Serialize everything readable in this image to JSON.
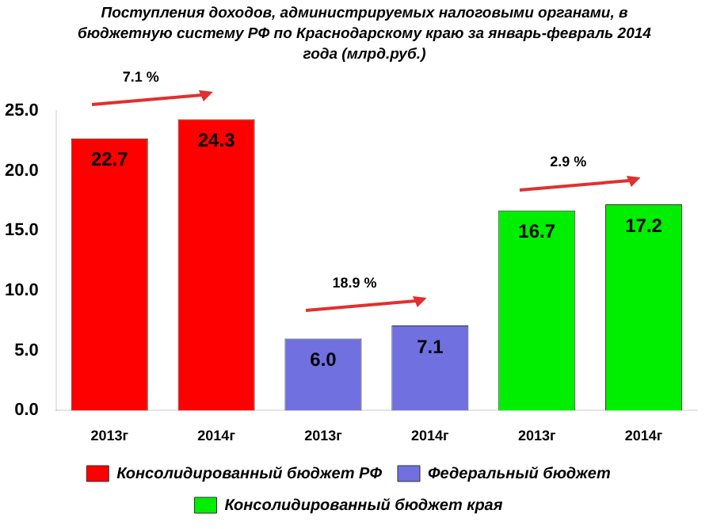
{
  "chart_data": {
    "type": "bar",
    "title": "Поступления доходов, администрируемых налоговыми органами, в бюджетную систему РФ по Краснодарскому краю за январь-февраль 2014 года  (млрд.руб.)",
    "categories": [
      "2013г",
      "2014г",
      "2013г",
      "2014г",
      "2013г",
      "2014г"
    ],
    "series": [
      {
        "name": "Консолидированный бюджет РФ",
        "color": "#ff0000",
        "values": [
          22.7,
          24.3,
          null,
          null,
          null,
          null
        ],
        "value_labels": [
          "22.7",
          "24.3",
          null,
          null,
          null,
          null
        ]
      },
      {
        "name": "Федеральный бюджет",
        "color": "#7070e0",
        "values": [
          null,
          null,
          6.0,
          7.1,
          null,
          null
        ],
        "value_labels": [
          null,
          null,
          "6.0",
          "7.1",
          null,
          null
        ]
      },
      {
        "name": "Консолидированный бюджет края",
        "color": "#00ee00",
        "values": [
          null,
          null,
          null,
          null,
          16.7,
          17.2
        ],
        "value_labels": [
          null,
          null,
          null,
          null,
          "16.7",
          "17.2"
        ]
      }
    ],
    "ylim": [
      0,
      25
    ],
    "yticks": [
      {
        "value": 0,
        "label": "0.0"
      },
      {
        "value": 5,
        "label": "5.0"
      },
      {
        "value": 10,
        "label": "10.0"
      },
      {
        "value": 15,
        "label": "15.0"
      },
      {
        "value": 20,
        "label": "20.0"
      },
      {
        "value": 25,
        "label": "25.0"
      }
    ],
    "grid": false,
    "legend": "bottom",
    "annotations": [
      "7.1 %",
      "18.9 %",
      "2.9 %"
    ]
  }
}
